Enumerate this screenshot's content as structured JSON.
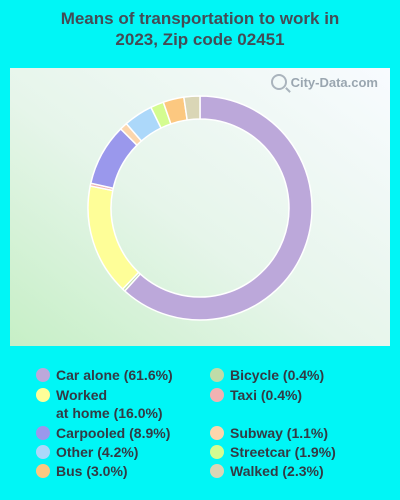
{
  "title_line1": "Means of transportation to work in",
  "title_line2": "2023, Zip code 02451",
  "watermark": "City-Data.com",
  "chart_data": {
    "type": "pie",
    "title": "Means of transportation to work in 2023, Zip code 02451",
    "series": [
      {
        "label": "Car alone",
        "value": 61.6,
        "display": "Car alone (61.6%)",
        "color": "#bca8da"
      },
      {
        "label": "Bicycle",
        "value": 0.4,
        "display": "Bicycle (0.4%)",
        "color": "#c0dca8"
      },
      {
        "label": "Worked at home",
        "value": 16.0,
        "display_line1": "Worked",
        "display_line2": "at home (16.0%)",
        "color": "#fefe98"
      },
      {
        "label": "Taxi",
        "value": 0.4,
        "display": "Taxi (0.4%)",
        "color": "#f1b2b2"
      },
      {
        "label": "Carpooled",
        "value": 8.9,
        "display": "Carpooled (8.9%)",
        "color": "#9a98ec"
      },
      {
        "label": "Subway",
        "value": 1.1,
        "display": "Subway (1.1%)",
        "color": "#fcd6ac"
      },
      {
        "label": "Other",
        "value": 4.2,
        "display": "Other (4.2%)",
        "color": "#acd8fa"
      },
      {
        "label": "Streetcar",
        "value": 1.9,
        "display": "Streetcar (1.9%)",
        "color": "#d4fc90"
      },
      {
        "label": "Bus",
        "value": 3.0,
        "display": "Bus (3.0%)",
        "color": "#fcc880"
      },
      {
        "label": "Walked",
        "value": 2.3,
        "display": "Walked (2.3%)",
        "color": "#dad6b6"
      }
    ],
    "slice_order": [
      "Car alone",
      "Bicycle",
      "Worked at home",
      "Taxi",
      "Carpooled",
      "Subway",
      "Other",
      "Streetcar",
      "Bus",
      "Walked"
    ]
  }
}
